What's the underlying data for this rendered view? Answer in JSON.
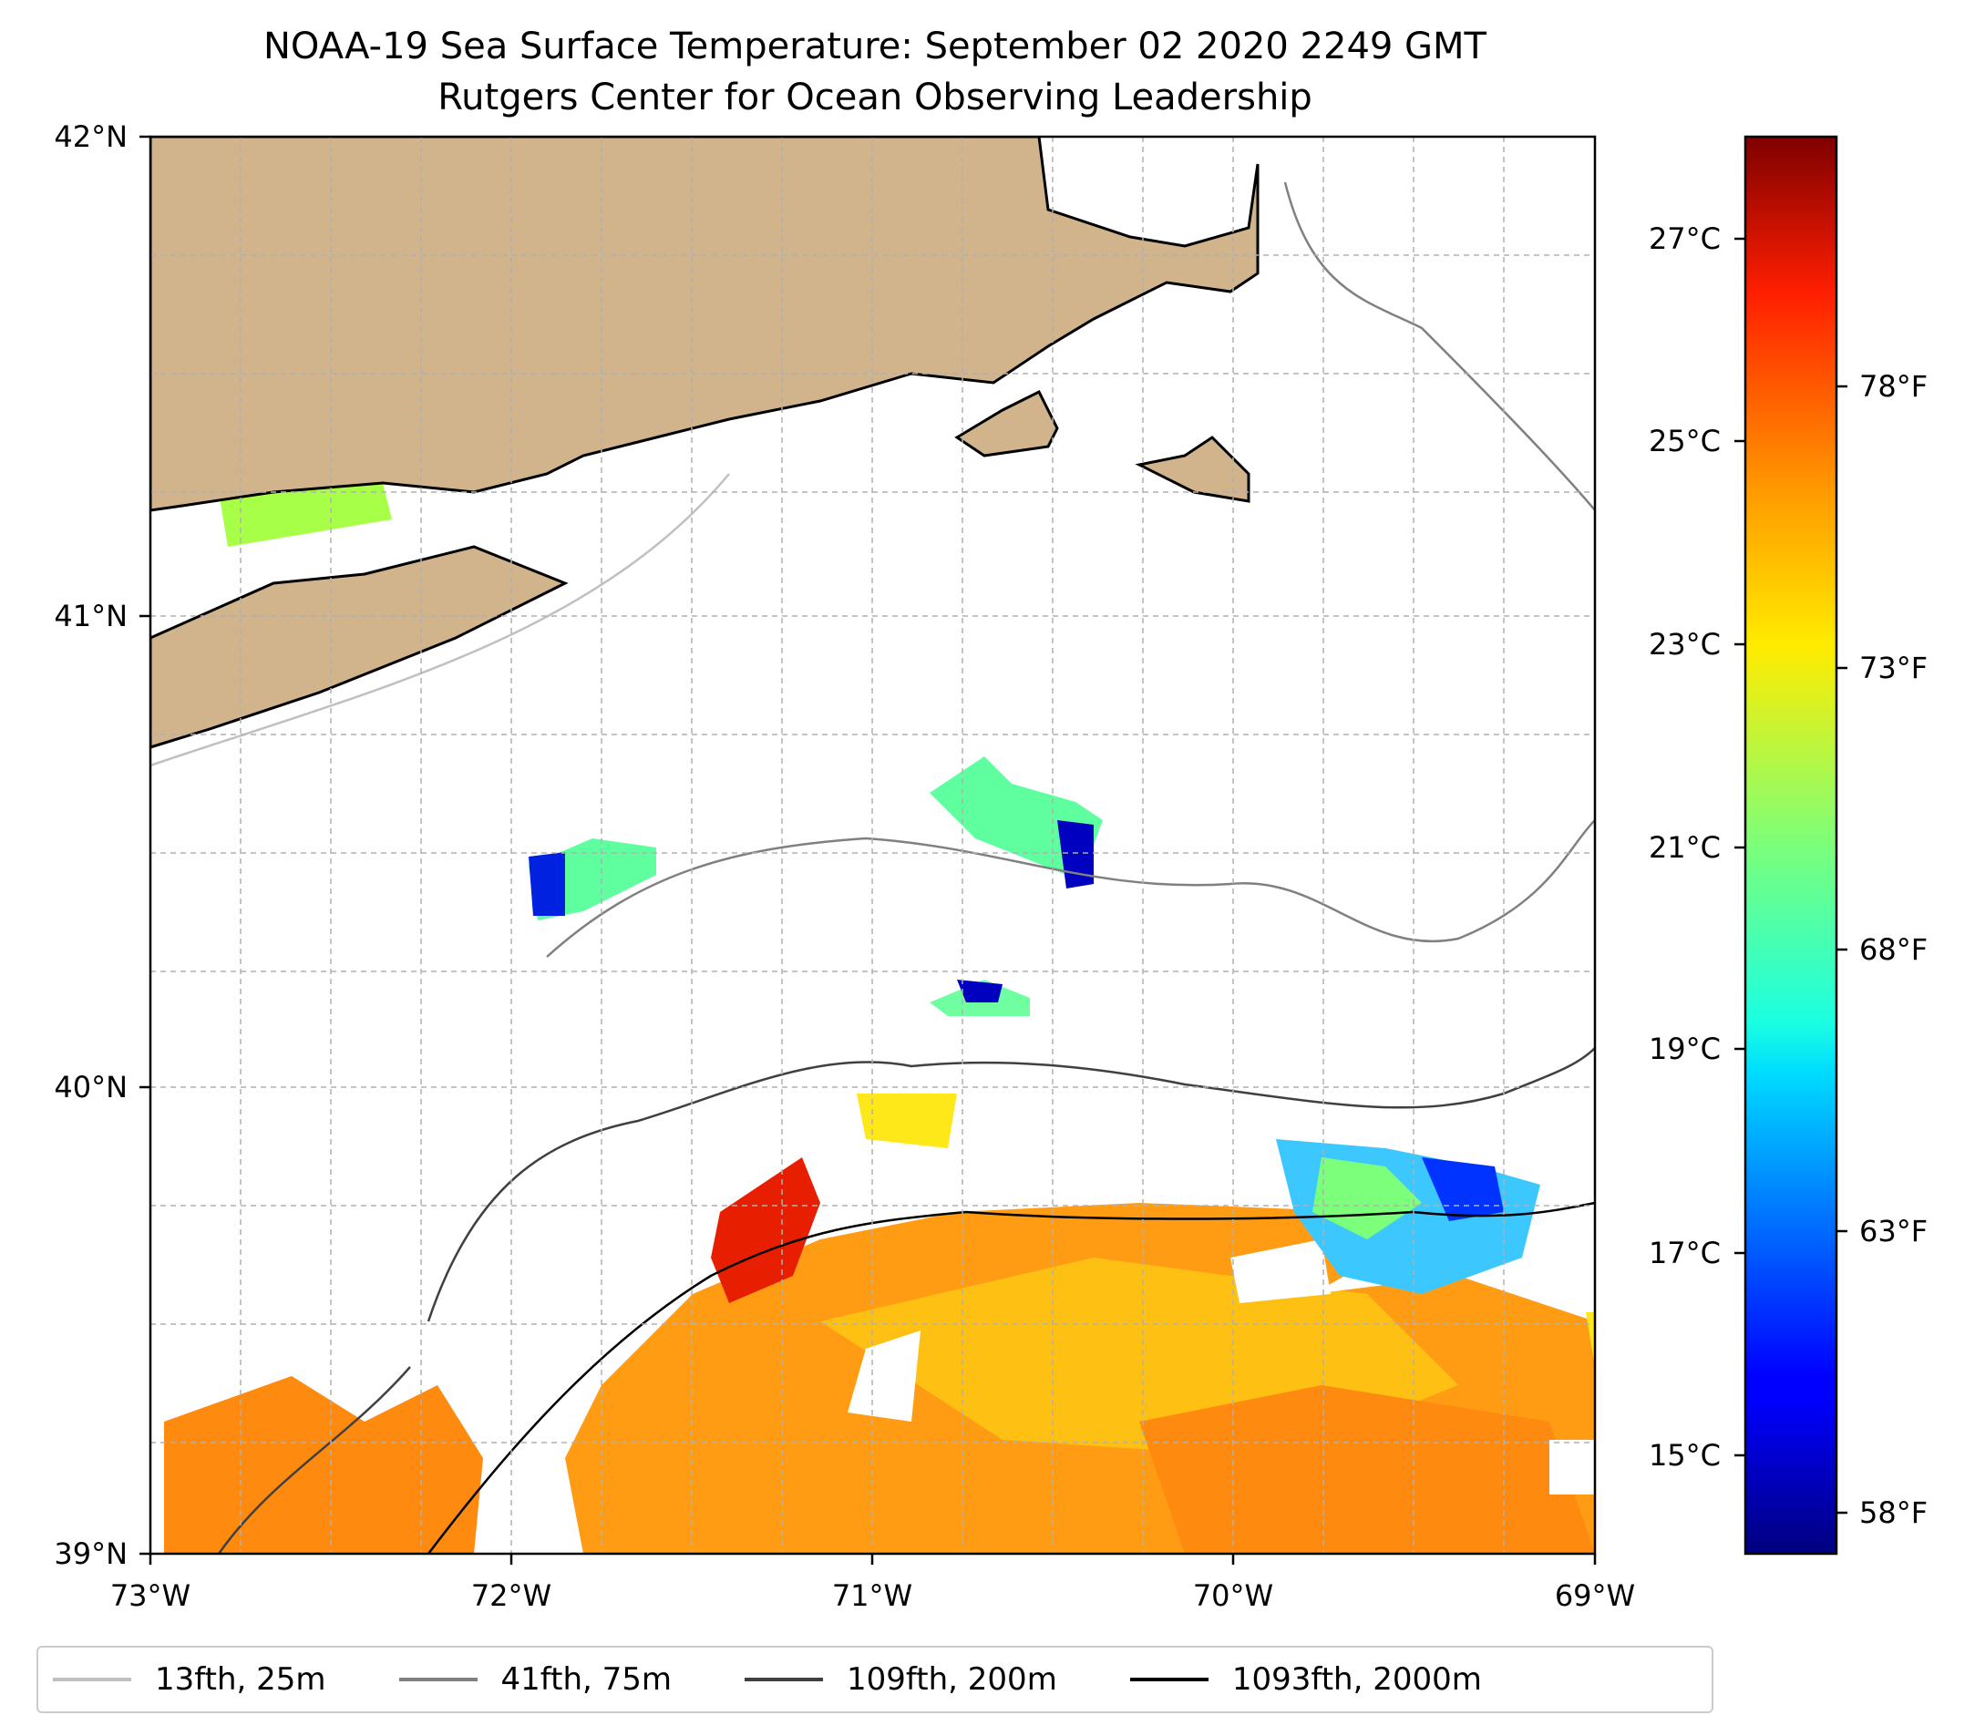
{
  "title": "NOAA-19 Sea Surface Temperature: September 02 2020 2249 GMT",
  "subtitle": "Rutgers Center for Ocean Observing Leadership",
  "axes": {
    "lon_ticks": [
      "73°W",
      "72°W",
      "71°W",
      "70°W",
      "69°W"
    ],
    "lat_ticks": [
      "42°N",
      "41°N",
      "40°N",
      "39°N"
    ]
  },
  "colorbar": {
    "celsius_ticks": [
      "27°C",
      "25°C",
      "23°C",
      "21°C",
      "19°C",
      "17°C",
      "15°C"
    ],
    "fahrenheit_ticks": [
      "78°F",
      "73°F",
      "68°F",
      "63°F",
      "58°F"
    ],
    "colormap": "jet",
    "range_c": [
      14,
      28.5
    ]
  },
  "legend": [
    {
      "label": "13fth, 25m",
      "color": "#c0c0c0"
    },
    {
      "label": "41fth, 75m",
      "color": "#808080"
    },
    {
      "label": "109fth, 200m",
      "color": "#404040"
    },
    {
      "label": "1093fth, 2000m",
      "color": "#000000"
    }
  ],
  "colors": {
    "land": "#d2b48c",
    "coastline": "#000000",
    "grid": "#b0b0b0"
  }
}
